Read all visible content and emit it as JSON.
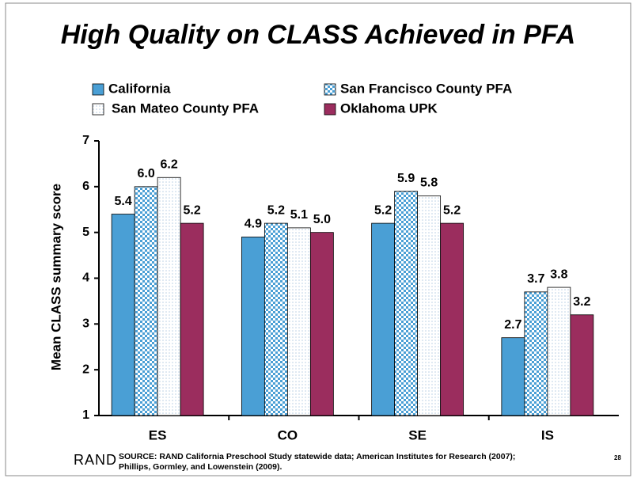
{
  "chart_data": {
    "type": "bar",
    "title": "High Quality on CLASS Achieved in PFA",
    "y_label": "Mean CLASS summary score",
    "categories": [
      "ES",
      "CO",
      "SE",
      "IS"
    ],
    "series": [
      {
        "name": "California",
        "color": "#4a9fd5",
        "pattern": "solid",
        "values": [
          5.4,
          4.9,
          5.2,
          2.7
        ],
        "value_labels": [
          "5.4",
          "4.9",
          "5.2",
          "2.7"
        ]
      },
      {
        "name": "San Francisco County PFA",
        "color": "#4a9fd5",
        "pattern": "checker",
        "values": [
          6,
          5.2,
          5.9,
          3.7
        ],
        "value_labels": [
          "6.0",
          "5.2",
          "5.9",
          "3.7"
        ]
      },
      {
        "name": "San Mateo County PFA",
        "color": "#b9cfe4",
        "pattern": "dots",
        "values": [
          6.2,
          5.1,
          5.8,
          3.8
        ],
        "value_labels": [
          "6.2",
          "5.1",
          "5.8",
          "3.8"
        ]
      },
      {
        "name": "Oklahoma UPK",
        "color": "#9b2d5e",
        "pattern": "solid",
        "values": [
          5.2,
          5,
          5.2,
          3.2
        ],
        "value_labels": [
          "5.2",
          "5.0",
          "5.2",
          "3.2"
        ]
      }
    ],
    "ylim": [
      1,
      7
    ],
    "yticks": [
      1,
      2,
      3,
      4,
      5,
      6,
      7
    ],
    "grid": false
  },
  "footer": {
    "logo": "RAND",
    "source": [
      "SOURCE: RAND California Preschool Study statewide data; American Institutes for Research (2007);",
      "Phillips, Gormley, and Lowenstein (2009)."
    ],
    "page": "28"
  }
}
